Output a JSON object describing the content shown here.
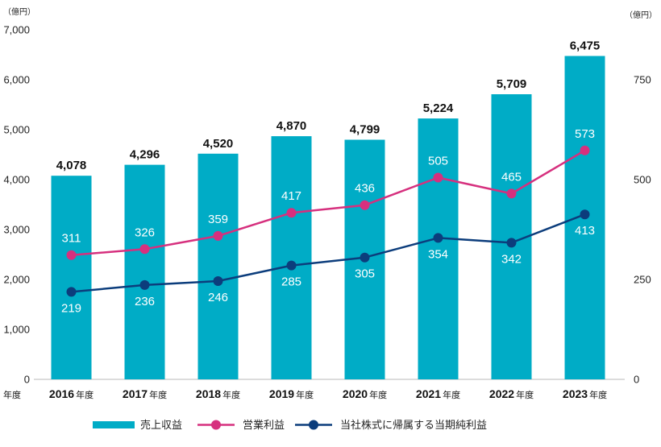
{
  "chart_data": {
    "type": "bar",
    "legend_position": "bottom",
    "grid": false,
    "x": {
      "label": "年度",
      "categories": [
        "2016年度",
        "2017年度",
        "2018年度",
        "2019年度",
        "2020年度",
        "2021年度",
        "2022年度",
        "2023年度"
      ]
    },
    "y_left": {
      "label": "（億円）",
      "ylim": [
        0,
        7000
      ],
      "ticks": [
        0,
        1000,
        2000,
        3000,
        4000,
        5000,
        6000,
        7000
      ]
    },
    "y_right": {
      "label": "（億円）",
      "ylim": [
        0,
        875
      ],
      "ticks": [
        0,
        250,
        500,
        750
      ]
    },
    "series": [
      {
        "name": "売上収益",
        "type": "bar",
        "axis": "left",
        "color": "#00acc6",
        "values": [
          4078,
          4296,
          4520,
          4870,
          4799,
          5224,
          5709,
          6475
        ]
      },
      {
        "name": "営業利益",
        "type": "line",
        "axis": "right",
        "color": "#d6307e",
        "values": [
          311,
          326,
          359,
          417,
          436,
          505,
          465,
          573
        ]
      },
      {
        "name": "当社株式に帰属する当期純利益",
        "type": "line",
        "axis": "right",
        "color": "#0c3d7c",
        "values": [
          219,
          236,
          246,
          285,
          305,
          354,
          342,
          413
        ]
      }
    ]
  }
}
